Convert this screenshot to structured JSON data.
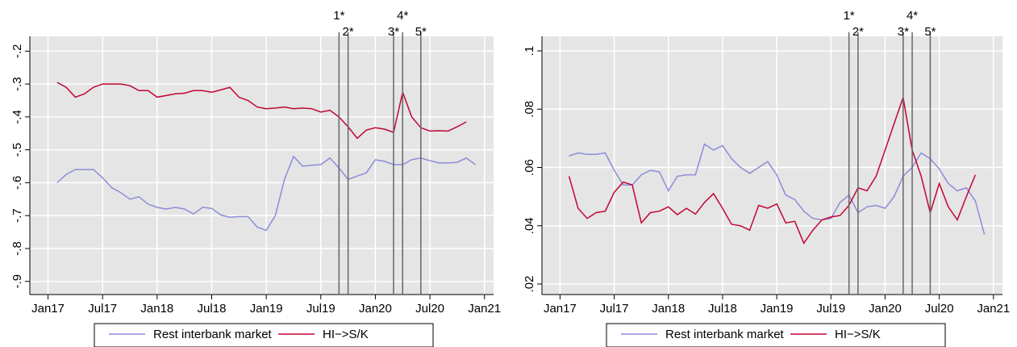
{
  "chart_data": [
    {
      "type": "line",
      "x": [
        "2017-02",
        "2017-03",
        "2017-04",
        "2017-05",
        "2017-06",
        "2017-07",
        "2017-08",
        "2017-09",
        "2017-10",
        "2017-11",
        "2017-12",
        "2018-01",
        "2018-02",
        "2018-03",
        "2018-04",
        "2018-05",
        "2018-06",
        "2018-07",
        "2018-08",
        "2018-09",
        "2018-10",
        "2018-11",
        "2018-12",
        "2019-01",
        "2019-02",
        "2019-03",
        "2019-04",
        "2019-05",
        "2019-06",
        "2019-07",
        "2019-08",
        "2019-09",
        "2019-10",
        "2019-11",
        "2019-12",
        "2020-01",
        "2020-02",
        "2020-03",
        "2020-04",
        "2020-05",
        "2020-06",
        "2020-07",
        "2020-08",
        "2020-09",
        "2020-10",
        "2020-11",
        "2020-12"
      ],
      "series": [
        {
          "name": "Rest interbank market",
          "color": "#8c8cd9",
          "values": [
            -0.6,
            -0.575,
            -0.56,
            -0.56,
            -0.56,
            -0.585,
            -0.615,
            -0.63,
            -0.65,
            -0.643,
            -0.665,
            -0.675,
            -0.68,
            -0.675,
            -0.68,
            -0.695,
            -0.675,
            -0.678,
            -0.698,
            -0.705,
            -0.703,
            -0.703,
            -0.735,
            -0.745,
            -0.7,
            -0.59,
            -0.52,
            -0.55,
            -0.547,
            -0.545,
            -0.525,
            -0.555,
            -0.59,
            -0.58,
            -0.57,
            -0.53,
            -0.535,
            -0.545,
            -0.545,
            -0.53,
            -0.525,
            -0.533,
            -0.54,
            -0.54,
            -0.538,
            -0.525,
            -0.545
          ]
        },
        {
          "name": "HI−>S/K",
          "color": "#c10534",
          "values": [
            -0.295,
            -0.31,
            -0.34,
            -0.33,
            -0.31,
            -0.3,
            -0.3,
            -0.3,
            -0.305,
            -0.32,
            -0.32,
            -0.34,
            -0.335,
            -0.33,
            -0.328,
            -0.32,
            -0.32,
            -0.325,
            -0.318,
            -0.31,
            -0.34,
            -0.35,
            -0.37,
            -0.375,
            -0.373,
            -0.37,
            -0.375,
            -0.373,
            -0.375,
            -0.385,
            -0.38,
            -0.4,
            -0.43,
            -0.465,
            -0.44,
            -0.433,
            -0.437,
            -0.447,
            -0.325,
            -0.4,
            -0.433,
            -0.443,
            -0.442,
            -0.443,
            -0.43,
            -0.415,
            null
          ]
        }
      ],
      "xlim": [
        "2016-11",
        "2021-02"
      ],
      "xticks": [
        {
          "value": "2017-01",
          "label": "Jan17"
        },
        {
          "value": "2017-07",
          "label": "Jul17"
        },
        {
          "value": "2018-01",
          "label": "Jan18"
        },
        {
          "value": "2018-07",
          "label": "Jul18"
        },
        {
          "value": "2019-01",
          "label": "Jan19"
        },
        {
          "value": "2019-07",
          "label": "Jul19"
        },
        {
          "value": "2020-01",
          "label": "Jan20"
        },
        {
          "value": "2020-07",
          "label": "Jul20"
        },
        {
          "value": "2021-01",
          "label": "Jan21"
        }
      ],
      "ylim": [
        -0.94,
        -0.155
      ],
      "yticks": [
        {
          "value": -0.2,
          "label": "-.2"
        },
        {
          "value": -0.3,
          "label": "-.3"
        },
        {
          "value": -0.4,
          "label": "-.4"
        },
        {
          "value": -0.5,
          "label": "-.5"
        },
        {
          "value": -0.6,
          "label": "-.6"
        },
        {
          "value": -0.7,
          "label": "-.7"
        },
        {
          "value": -0.8,
          "label": "-.8"
        },
        {
          "value": -0.9,
          "label": "-.9"
        }
      ],
      "grid": true,
      "events": [
        {
          "x": "2019-09",
          "label": "1*"
        },
        {
          "x": "2019-10",
          "label": "2*"
        },
        {
          "x": "2020-03",
          "label": "3*"
        },
        {
          "x": "2020-04",
          "label": "4*"
        },
        {
          "x": "2020-06",
          "label": "5*"
        }
      ]
    },
    {
      "type": "line",
      "x": [
        "2017-02",
        "2017-03",
        "2017-04",
        "2017-05",
        "2017-06",
        "2017-07",
        "2017-08",
        "2017-09",
        "2017-10",
        "2017-11",
        "2017-12",
        "2018-01",
        "2018-02",
        "2018-03",
        "2018-04",
        "2018-05",
        "2018-06",
        "2018-07",
        "2018-08",
        "2018-09",
        "2018-10",
        "2018-11",
        "2018-12",
        "2019-01",
        "2019-02",
        "2019-03",
        "2019-04",
        "2019-05",
        "2019-06",
        "2019-07",
        "2019-08",
        "2019-09",
        "2019-10",
        "2019-11",
        "2019-12",
        "2020-01",
        "2020-02",
        "2020-03",
        "2020-04",
        "2020-05",
        "2020-06",
        "2020-07",
        "2020-08",
        "2020-09",
        "2020-10",
        "2020-11",
        "2020-12"
      ],
      "series": [
        {
          "name": "Rest interbank market",
          "color": "#8c8cd9",
          "values": [
            0.064,
            0.065,
            0.0645,
            0.0645,
            0.065,
            0.059,
            0.054,
            0.054,
            0.0575,
            0.059,
            0.0585,
            0.052,
            0.057,
            0.0575,
            0.0575,
            0.068,
            0.066,
            0.0675,
            0.063,
            0.06,
            0.058,
            0.06,
            0.062,
            0.0575,
            0.0505,
            0.049,
            0.045,
            0.0425,
            0.042,
            0.0425,
            0.048,
            0.0505,
            0.0445,
            0.0465,
            0.047,
            0.046,
            0.05,
            0.057,
            0.06,
            0.065,
            0.063,
            0.0595,
            0.0545,
            0.052,
            0.053,
            0.0485,
            0.037
          ]
        },
        {
          "name": "HI−>S/K",
          "color": "#c10534",
          "values": [
            0.057,
            0.046,
            0.0425,
            0.0445,
            0.045,
            0.0515,
            0.055,
            0.054,
            0.041,
            0.0445,
            0.045,
            0.0465,
            0.0438,
            0.046,
            0.044,
            0.048,
            0.051,
            0.046,
            0.0405,
            0.04,
            0.0385,
            0.047,
            0.046,
            0.0475,
            0.041,
            0.0415,
            0.034,
            0.0385,
            0.042,
            0.043,
            0.0435,
            0.047,
            0.053,
            0.052,
            0.057,
            0.066,
            0.075,
            0.084,
            0.066,
            0.057,
            0.0445,
            0.0545,
            0.0465,
            0.042,
            0.05,
            0.0575,
            null
          ]
        }
      ],
      "xlim": [
        "2016-11",
        "2021-02"
      ],
      "xticks": [
        {
          "value": "2017-01",
          "label": "Jan17"
        },
        {
          "value": "2017-07",
          "label": "Jul17"
        },
        {
          "value": "2018-01",
          "label": "Jan18"
        },
        {
          "value": "2018-07",
          "label": "Jul18"
        },
        {
          "value": "2019-01",
          "label": "Jan19"
        },
        {
          "value": "2019-07",
          "label": "Jul19"
        },
        {
          "value": "2020-01",
          "label": "Jan20"
        },
        {
          "value": "2020-07",
          "label": "Jul20"
        },
        {
          "value": "2021-01",
          "label": "Jan21"
        }
      ],
      "ylim": [
        0.0164,
        0.105
      ],
      "yticks": [
        {
          "value": 0.02,
          "label": ".02"
        },
        {
          "value": 0.04,
          "label": ".04"
        },
        {
          "value": 0.06,
          "label": ".06"
        },
        {
          "value": 0.08,
          "label": ".08"
        },
        {
          "value": 0.1,
          "label": ".1"
        }
      ],
      "grid": true,
      "events": [
        {
          "x": "2019-09",
          "label": "1*"
        },
        {
          "x": "2019-10",
          "label": "2*"
        },
        {
          "x": "2020-03",
          "label": "3*"
        },
        {
          "x": "2020-04",
          "label": "4*"
        },
        {
          "x": "2020-06",
          "label": "5*"
        }
      ]
    }
  ]
}
